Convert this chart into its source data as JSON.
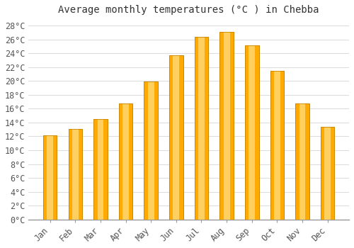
{
  "title": "Average monthly temperatures (°C ) in Chebba",
  "months": [
    "Jan",
    "Feb",
    "Mar",
    "Apr",
    "May",
    "Jun",
    "Jul",
    "Aug",
    "Sep",
    "Oct",
    "Nov",
    "Dec"
  ],
  "temperatures": [
    12.1,
    13.1,
    14.5,
    16.7,
    19.9,
    23.7,
    26.4,
    27.1,
    25.1,
    21.5,
    16.8,
    13.4
  ],
  "bar_color_main": "#FFAA00",
  "bar_color_light": "#FFD060",
  "bar_edge_color": "#CC8800",
  "background_color": "#FFFFFF",
  "plot_bg_color": "#FFFFFF",
  "grid_color": "#DDDDDD",
  "tick_color": "#AAAAAA",
  "text_color": "#555555",
  "ylim": [
    0,
    29
  ],
  "yticks": [
    0,
    2,
    4,
    6,
    8,
    10,
    12,
    14,
    16,
    18,
    20,
    22,
    24,
    26,
    28
  ],
  "title_fontsize": 10,
  "tick_fontsize": 8.5,
  "bar_width": 0.55
}
